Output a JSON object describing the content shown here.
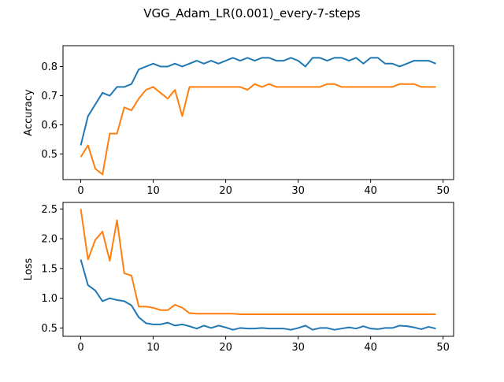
{
  "chart_data": {
    "title": "VGG_Adam_LR(0.001)_every-7-steps",
    "colors": {
      "blue": "#1f77b4",
      "orange": "#ff7f0e"
    },
    "panels": [
      {
        "type": "line",
        "ylabel": "Accuracy",
        "xlabel": "",
        "xlim": [
          -2.45,
          51.45
        ],
        "ylim": [
          0.4125,
          0.8715
        ],
        "xticks": [
          0,
          10,
          20,
          30,
          40,
          50
        ],
        "yticks": [
          0.5,
          0.6,
          0.7,
          0.8
        ],
        "ytick_labels": [
          "0.5",
          "0.6",
          "0.7",
          "0.8"
        ],
        "grid": false,
        "series": [
          {
            "color": "#1f77b4",
            "values": [
              0.53,
              0.63,
              0.67,
              0.71,
              0.7,
              0.73,
              0.73,
              0.74,
              0.79,
              0.8,
              0.81,
              0.8,
              0.8,
              0.81,
              0.8,
              0.81,
              0.82,
              0.81,
              0.82,
              0.81,
              0.82,
              0.83,
              0.82,
              0.83,
              0.82,
              0.83,
              0.83,
              0.82,
              0.82,
              0.83,
              0.82,
              0.8,
              0.83,
              0.83,
              0.82,
              0.83,
              0.83,
              0.82,
              0.83,
              0.81,
              0.83,
              0.83,
              0.81,
              0.81,
              0.8,
              0.81,
              0.82,
              0.82,
              0.82,
              0.81
            ]
          },
          {
            "color": "#ff7f0e",
            "values": [
              0.49,
              0.53,
              0.45,
              0.43,
              0.57,
              0.57,
              0.66,
              0.65,
              0.69,
              0.72,
              0.73,
              0.71,
              0.69,
              0.72,
              0.63,
              0.73,
              0.73,
              0.73,
              0.73,
              0.73,
              0.73,
              0.73,
              0.73,
              0.72,
              0.74,
              0.73,
              0.74,
              0.73,
              0.73,
              0.73,
              0.73,
              0.73,
              0.73,
              0.73,
              0.74,
              0.74,
              0.73,
              0.73,
              0.73,
              0.73,
              0.73,
              0.73,
              0.73,
              0.73,
              0.74,
              0.74,
              0.74,
              0.73,
              0.73,
              0.73
            ]
          }
        ]
      },
      {
        "type": "line",
        "ylabel": "Loss",
        "xlabel": "",
        "xlim": [
          -2.45,
          51.45
        ],
        "ylim": [
          0.36,
          2.61
        ],
        "xticks": [
          0,
          10,
          20,
          30,
          40,
          50
        ],
        "yticks": [
          0.5,
          1.0,
          1.5,
          2.0,
          2.5
        ],
        "ytick_labels": [
          "0.5",
          "1.0",
          "1.5",
          "2.0",
          "2.5"
        ],
        "grid": false,
        "series": [
          {
            "color": "#1f77b4",
            "values": [
              1.65,
              1.22,
              1.13,
              0.95,
              1.0,
              0.97,
              0.95,
              0.88,
              0.68,
              0.58,
              0.56,
              0.56,
              0.59,
              0.54,
              0.56,
              0.53,
              0.49,
              0.54,
              0.5,
              0.54,
              0.51,
              0.47,
              0.5,
              0.49,
              0.49,
              0.5,
              0.49,
              0.49,
              0.49,
              0.47,
              0.5,
              0.54,
              0.47,
              0.5,
              0.5,
              0.47,
              0.49,
              0.51,
              0.49,
              0.53,
              0.49,
              0.48,
              0.5,
              0.5,
              0.54,
              0.53,
              0.51,
              0.48,
              0.52,
              0.49
            ]
          },
          {
            "color": "#ff7f0e",
            "values": [
              2.5,
              1.65,
              1.98,
              2.12,
              1.63,
              2.31,
              1.42,
              1.38,
              0.86,
              0.86,
              0.84,
              0.8,
              0.8,
              0.89,
              0.84,
              0.75,
              0.74,
              0.74,
              0.74,
              0.74,
              0.74,
              0.74,
              0.73,
              0.73,
              0.73,
              0.73,
              0.73,
              0.73,
              0.73,
              0.73,
              0.73,
              0.73,
              0.73,
              0.73,
              0.73,
              0.73,
              0.73,
              0.73,
              0.73,
              0.73,
              0.73,
              0.73,
              0.73,
              0.73,
              0.73,
              0.73,
              0.73,
              0.73,
              0.73,
              0.73
            ]
          }
        ]
      }
    ]
  }
}
